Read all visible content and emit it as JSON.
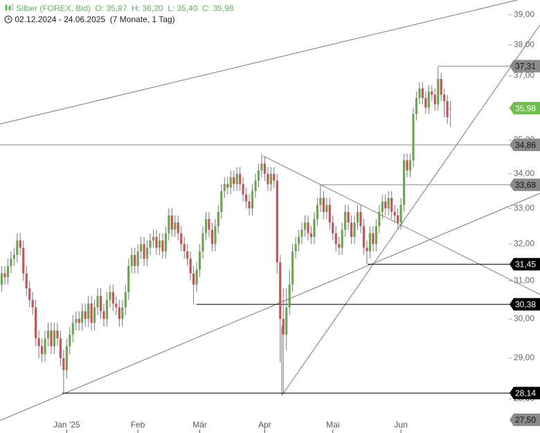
{
  "header": {
    "instrument": "Silber (FOREX, Bid)",
    "quote": [
      "O: 35,97",
      "H: 36,20",
      "L: 35,40",
      "C: 35,98"
    ],
    "range": "02.12.2024 - 24.06.2025",
    "span": "(7 Monate, 1 Tag)"
  },
  "chart_data": {
    "type": "candlestick",
    "log_scale": true,
    "up_color": "#6aa84f",
    "down_color": "#c9535a",
    "wick_color": "#777777",
    "ylim": [
      27.4,
      39.5
    ],
    "yticks": [
      {
        "value": 28,
        "label": "28,00"
      },
      {
        "value": 29,
        "label": "29,00"
      },
      {
        "value": 30,
        "label": "30,00"
      },
      {
        "value": 31,
        "label": "31,00"
      },
      {
        "value": 32,
        "label": "32,00"
      },
      {
        "value": 33,
        "label": "33,00"
      },
      {
        "value": 34,
        "label": "34,00"
      },
      {
        "value": 35,
        "label": "35,00"
      },
      {
        "value": 36,
        "label": "36,00"
      },
      {
        "value": 37,
        "label": "37,00"
      },
      {
        "value": 38,
        "label": "38,00"
      },
      {
        "value": 39,
        "label": "39,00"
      }
    ],
    "levels": [
      {
        "value": 37.31,
        "label": "37,31",
        "color": "#8a8a8a"
      },
      {
        "value": 35.98,
        "label": "35,98",
        "color": "#6cc04a"
      },
      {
        "value": 34.86,
        "label": "34,86",
        "color": "#8a8a8a"
      },
      {
        "value": 33.68,
        "label": "33,68",
        "color": "#8a8a8a"
      },
      {
        "value": 31.45,
        "label": "31,45",
        "color": "#000000"
      },
      {
        "value": 30.38,
        "label": "30,38",
        "color": "#000000"
      },
      {
        "value": 28.14,
        "label": "28,14",
        "color": "#000000"
      },
      {
        "value": 27.5,
        "label": "27,50",
        "color": "#8a8a8a"
      }
    ],
    "categories": [
      null,
      null,
      null,
      null,
      null,
      null,
      null,
      null,
      null,
      null,
      null,
      null,
      null,
      null,
      null,
      null,
      null,
      null,
      null,
      null,
      null,
      null,
      "Jan '25",
      null,
      null,
      null,
      null,
      null,
      null,
      null,
      null,
      null,
      null,
      null,
      null,
      null,
      null,
      null,
      null,
      null,
      null,
      null,
      null,
      null,
      null,
      "Feb",
      null,
      null,
      null,
      null,
      null,
      null,
      null,
      null,
      null,
      null,
      null,
      null,
      null,
      null,
      null,
      null,
      null,
      null,
      null,
      "Mär",
      null,
      null,
      null,
      null,
      null,
      null,
      null,
      null,
      null,
      null,
      null,
      null,
      null,
      null,
      null,
      null,
      null,
      null,
      null,
      null,
      "Apr",
      null,
      null,
      null,
      null,
      null,
      null,
      null,
      null,
      null,
      null,
      null,
      null,
      null,
      null,
      null,
      null,
      null,
      null,
      null,
      null,
      null,
      "Mai",
      null,
      null,
      null,
      null,
      null,
      null,
      null,
      null,
      null,
      null,
      null,
      null,
      null,
      null,
      null,
      null,
      null,
      null,
      null,
      null,
      null,
      "Jun",
      null,
      null,
      null,
      null,
      null,
      null,
      null,
      null,
      null,
      null,
      null,
      null,
      null,
      null,
      null,
      null
    ],
    "ohlc": [
      [
        30.7,
        31.1,
        30.5,
        30.9
      ],
      [
        30.9,
        31.4,
        30.7,
        31.2
      ],
      [
        31.2,
        31.4,
        30.9,
        31.1
      ],
      [
        31.1,
        31.6,
        30.9,
        31.4
      ],
      [
        31.4,
        31.8,
        31.2,
        31.6
      ],
      [
        31.6,
        31.9,
        31.4,
        31.7
      ],
      [
        31.7,
        32.3,
        31.5,
        32.1
      ],
      [
        32.1,
        32.3,
        31.7,
        31.9
      ],
      [
        31.9,
        32.1,
        31.0,
        31.2
      ],
      [
        31.2,
        31.4,
        30.6,
        30.8
      ],
      [
        30.8,
        31.0,
        30.3,
        30.5
      ],
      [
        30.5,
        30.7,
        30.1,
        30.3
      ],
      [
        30.3,
        30.5,
        29.3,
        29.5
      ],
      [
        29.5,
        29.7,
        29.0,
        29.3
      ],
      [
        29.3,
        29.5,
        28.9,
        29.1
      ],
      [
        29.1,
        29.7,
        28.9,
        29.5
      ],
      [
        29.5,
        29.9,
        29.3,
        29.7
      ],
      [
        29.7,
        29.9,
        29.1,
        29.3
      ],
      [
        29.3,
        29.9,
        29.1,
        29.7
      ],
      [
        29.7,
        29.9,
        29.3,
        29.5
      ],
      [
        29.5,
        29.7,
        28.8,
        29.0
      ],
      [
        29.0,
        29.2,
        28.14,
        28.7
      ],
      [
        28.7,
        29.5,
        28.5,
        29.3
      ],
      [
        29.3,
        29.8,
        29.1,
        29.6
      ],
      [
        29.6,
        30.1,
        29.4,
        29.9
      ],
      [
        29.9,
        30.2,
        29.7,
        30.0
      ],
      [
        30.0,
        30.2,
        29.7,
        29.9
      ],
      [
        29.9,
        30.4,
        29.7,
        30.2
      ],
      [
        30.2,
        30.4,
        29.8,
        30.0
      ],
      [
        30.0,
        30.6,
        29.8,
        30.4
      ],
      [
        30.4,
        30.6,
        29.7,
        29.9
      ],
      [
        29.9,
        30.5,
        29.7,
        30.3
      ],
      [
        30.3,
        30.8,
        30.1,
        30.6
      ],
      [
        30.6,
        30.8,
        30.0,
        30.2
      ],
      [
        30.2,
        30.4,
        29.8,
        30.0
      ],
      [
        30.0,
        30.7,
        29.8,
        30.5
      ],
      [
        30.5,
        30.9,
        30.3,
        30.7
      ],
      [
        30.7,
        30.9,
        30.2,
        30.4
      ],
      [
        30.4,
        30.6,
        30.1,
        30.3
      ],
      [
        30.3,
        30.5,
        29.8,
        30.0
      ],
      [
        30.0,
        30.5,
        29.8,
        30.3
      ],
      [
        30.3,
        30.9,
        30.1,
        30.7
      ],
      [
        30.7,
        31.6,
        30.5,
        31.4
      ],
      [
        31.4,
        31.9,
        31.2,
        31.7
      ],
      [
        31.7,
        31.9,
        31.2,
        31.4
      ],
      [
        31.4,
        32.0,
        31.2,
        31.8
      ],
      [
        31.8,
        32.2,
        31.6,
        32.0
      ],
      [
        32.0,
        32.2,
        31.4,
        31.6
      ],
      [
        31.6,
        32.1,
        31.4,
        31.9
      ],
      [
        31.9,
        32.3,
        31.7,
        32.1
      ],
      [
        32.1,
        32.4,
        31.9,
        32.2
      ],
      [
        32.2,
        32.4,
        31.7,
        31.9
      ],
      [
        31.9,
        32.3,
        31.7,
        32.1
      ],
      [
        32.1,
        32.3,
        31.6,
        31.8
      ],
      [
        31.8,
        32.5,
        31.6,
        32.3
      ],
      [
        32.3,
        33.0,
        32.1,
        32.8
      ],
      [
        32.8,
        33.0,
        32.2,
        32.4
      ],
      [
        32.4,
        32.8,
        32.2,
        32.6
      ],
      [
        32.6,
        32.8,
        32.1,
        32.3
      ],
      [
        32.3,
        32.5,
        31.8,
        32.0
      ],
      [
        32.0,
        32.2,
        31.6,
        31.8
      ],
      [
        31.8,
        32.0,
        31.4,
        31.6
      ],
      [
        31.6,
        31.8,
        31.0,
        31.2
      ],
      [
        31.2,
        31.4,
        30.38,
        30.9
      ],
      [
        30.9,
        31.5,
        30.7,
        31.3
      ],
      [
        31.3,
        32.0,
        31.1,
        31.8
      ],
      [
        31.8,
        32.5,
        31.6,
        32.3
      ],
      [
        32.3,
        32.9,
        32.1,
        32.7
      ],
      [
        32.7,
        32.9,
        32.2,
        32.4
      ],
      [
        32.4,
        32.6,
        31.8,
        32.0
      ],
      [
        32.0,
        32.7,
        31.8,
        32.5
      ],
      [
        32.5,
        33.1,
        32.3,
        32.9
      ],
      [
        32.9,
        33.7,
        32.7,
        33.5
      ],
      [
        33.5,
        33.9,
        33.3,
        33.7
      ],
      [
        33.7,
        33.9,
        33.4,
        33.6
      ],
      [
        33.6,
        34.1,
        33.4,
        33.9
      ],
      [
        33.9,
        34.1,
        33.5,
        33.7
      ],
      [
        33.7,
        34.2,
        33.5,
        34.0
      ],
      [
        34.0,
        34.2,
        33.5,
        33.7
      ],
      [
        33.7,
        33.9,
        33.2,
        33.4
      ],
      [
        33.4,
        33.6,
        33.0,
        33.2
      ],
      [
        33.2,
        33.4,
        32.8,
        33.0
      ],
      [
        33.0,
        33.7,
        32.8,
        33.5
      ],
      [
        33.5,
        34.0,
        33.3,
        33.8
      ],
      [
        33.8,
        34.3,
        33.6,
        34.1
      ],
      [
        34.1,
        34.6,
        33.9,
        34.3
      ],
      [
        34.3,
        34.5,
        33.8,
        34.0
      ],
      [
        34.0,
        34.2,
        33.5,
        33.7
      ],
      [
        33.7,
        34.2,
        33.5,
        34.0
      ],
      [
        34.0,
        34.2,
        33.6,
        33.8
      ],
      [
        33.8,
        34.0,
        31.2,
        31.5
      ],
      [
        31.5,
        31.7,
        28.9,
        30.0
      ],
      [
        30.0,
        30.8,
        28.14,
        29.6
      ],
      [
        29.6,
        30.8,
        29.2,
        30.3
      ],
      [
        30.3,
        31.3,
        30.1,
        30.9
      ],
      [
        30.9,
        32.0,
        30.7,
        31.8
      ],
      [
        31.8,
        32.2,
        31.6,
        32.0
      ],
      [
        32.0,
        32.4,
        31.8,
        32.2
      ],
      [
        32.2,
        32.6,
        32.0,
        32.4
      ],
      [
        32.4,
        32.8,
        32.2,
        32.6
      ],
      [
        32.6,
        32.8,
        32.1,
        32.3
      ],
      [
        32.3,
        32.5,
        32.0,
        32.2
      ],
      [
        32.2,
        32.9,
        32.0,
        32.7
      ],
      [
        32.7,
        33.3,
        32.5,
        33.1
      ],
      [
        33.1,
        33.68,
        32.9,
        33.3
      ],
      [
        33.3,
        33.5,
        32.7,
        32.9
      ],
      [
        32.9,
        33.3,
        32.7,
        33.1
      ],
      [
        33.1,
        33.3,
        32.4,
        32.6
      ],
      [
        32.6,
        32.8,
        32.1,
        32.3
      ],
      [
        32.3,
        32.5,
        31.8,
        32.0
      ],
      [
        32.0,
        32.2,
        31.7,
        31.9
      ],
      [
        31.9,
        32.6,
        31.7,
        32.4
      ],
      [
        32.4,
        33.1,
        32.2,
        32.9
      ],
      [
        32.9,
        33.1,
        32.4,
        32.6
      ],
      [
        32.6,
        32.8,
        32.0,
        32.2
      ],
      [
        32.2,
        32.8,
        32.0,
        32.6
      ],
      [
        32.6,
        33.1,
        32.4,
        32.9
      ],
      [
        32.9,
        33.1,
        32.3,
        32.5
      ],
      [
        32.5,
        32.7,
        31.7,
        31.9
      ],
      [
        31.9,
        32.1,
        31.45,
        31.8
      ],
      [
        31.8,
        32.5,
        31.6,
        32.3
      ],
      [
        32.3,
        32.5,
        31.8,
        32.0
      ],
      [
        32.0,
        32.7,
        31.8,
        32.5
      ],
      [
        32.5,
        33.1,
        32.3,
        32.9
      ],
      [
        32.9,
        33.4,
        32.7,
        33.2
      ],
      [
        33.2,
        33.4,
        32.8,
        33.0
      ],
      [
        33.0,
        33.5,
        32.8,
        33.3
      ],
      [
        33.3,
        33.5,
        32.7,
        32.9
      ],
      [
        32.9,
        33.1,
        32.6,
        32.8
      ],
      [
        32.8,
        33.0,
        32.4,
        32.6
      ],
      [
        32.6,
        33.3,
        32.4,
        33.1
      ],
      [
        33.1,
        34.6,
        32.9,
        34.4
      ],
      [
        34.4,
        34.6,
        33.9,
        34.1
      ],
      [
        34.1,
        34.6,
        33.9,
        34.4
      ],
      [
        34.4,
        36.0,
        34.2,
        35.8
      ],
      [
        35.8,
        36.5,
        35.6,
        36.3
      ],
      [
        36.3,
        36.8,
        36.1,
        36.6
      ],
      [
        36.6,
        36.8,
        36.1,
        36.3
      ],
      [
        36.3,
        36.5,
        35.8,
        36.0
      ],
      [
        36.0,
        36.7,
        35.8,
        36.5
      ],
      [
        36.5,
        36.7,
        36.2,
        36.4
      ],
      [
        36.4,
        36.6,
        35.9,
        36.1
      ],
      [
        36.1,
        37.31,
        35.9,
        36.9
      ],
      [
        36.9,
        37.1,
        36.2,
        36.4
      ],
      [
        36.4,
        36.6,
        35.7,
        36.2
      ],
      [
        36.2,
        36.4,
        35.5,
        35.7
      ],
      [
        35.97,
        36.2,
        35.4,
        35.98
      ]
    ]
  }
}
